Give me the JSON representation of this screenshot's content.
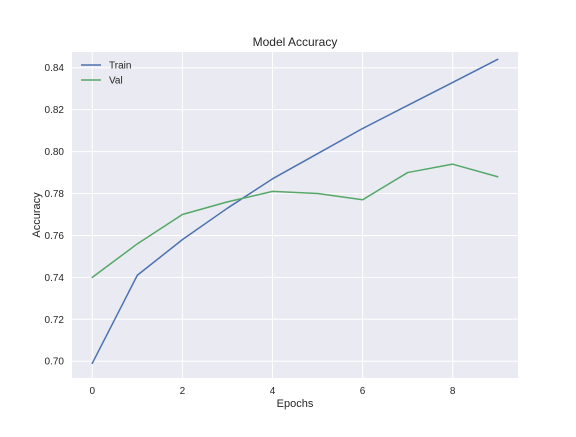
{
  "chart_data": {
    "type": "line",
    "title": "Model Accuracy",
    "xlabel": "Epochs",
    "ylabel": "Accuracy",
    "x": [
      0,
      1,
      2,
      3,
      4,
      5,
      6,
      7,
      8,
      9
    ],
    "xlim": [
      -0.45,
      9.45
    ],
    "ylim": [
      0.692,
      0.8475
    ],
    "xticks": [
      0,
      2,
      4,
      6,
      8
    ],
    "xtick_labels": [
      "0",
      "2",
      "4",
      "6",
      "8"
    ],
    "yticks": [
      0.7,
      0.72,
      0.74,
      0.76,
      0.78,
      0.8,
      0.82,
      0.84
    ],
    "ytick_labels": [
      "0.70",
      "0.72",
      "0.74",
      "0.76",
      "0.78",
      "0.80",
      "0.82",
      "0.84"
    ],
    "grid": true,
    "legend_position": "top-left",
    "background_color": "#eaeaf2",
    "grid_color": "#ffffff",
    "series": [
      {
        "name": "Train",
        "color": "#4c72b0",
        "values": [
          0.699,
          0.741,
          0.758,
          0.773,
          0.787,
          0.799,
          0.811,
          0.822,
          0.833,
          0.844
        ]
      },
      {
        "name": "Val",
        "color": "#55a868",
        "values": [
          0.74,
          0.756,
          0.77,
          0.776,
          0.781,
          0.78,
          0.777,
          0.79,
          0.794,
          0.788
        ]
      }
    ]
  }
}
